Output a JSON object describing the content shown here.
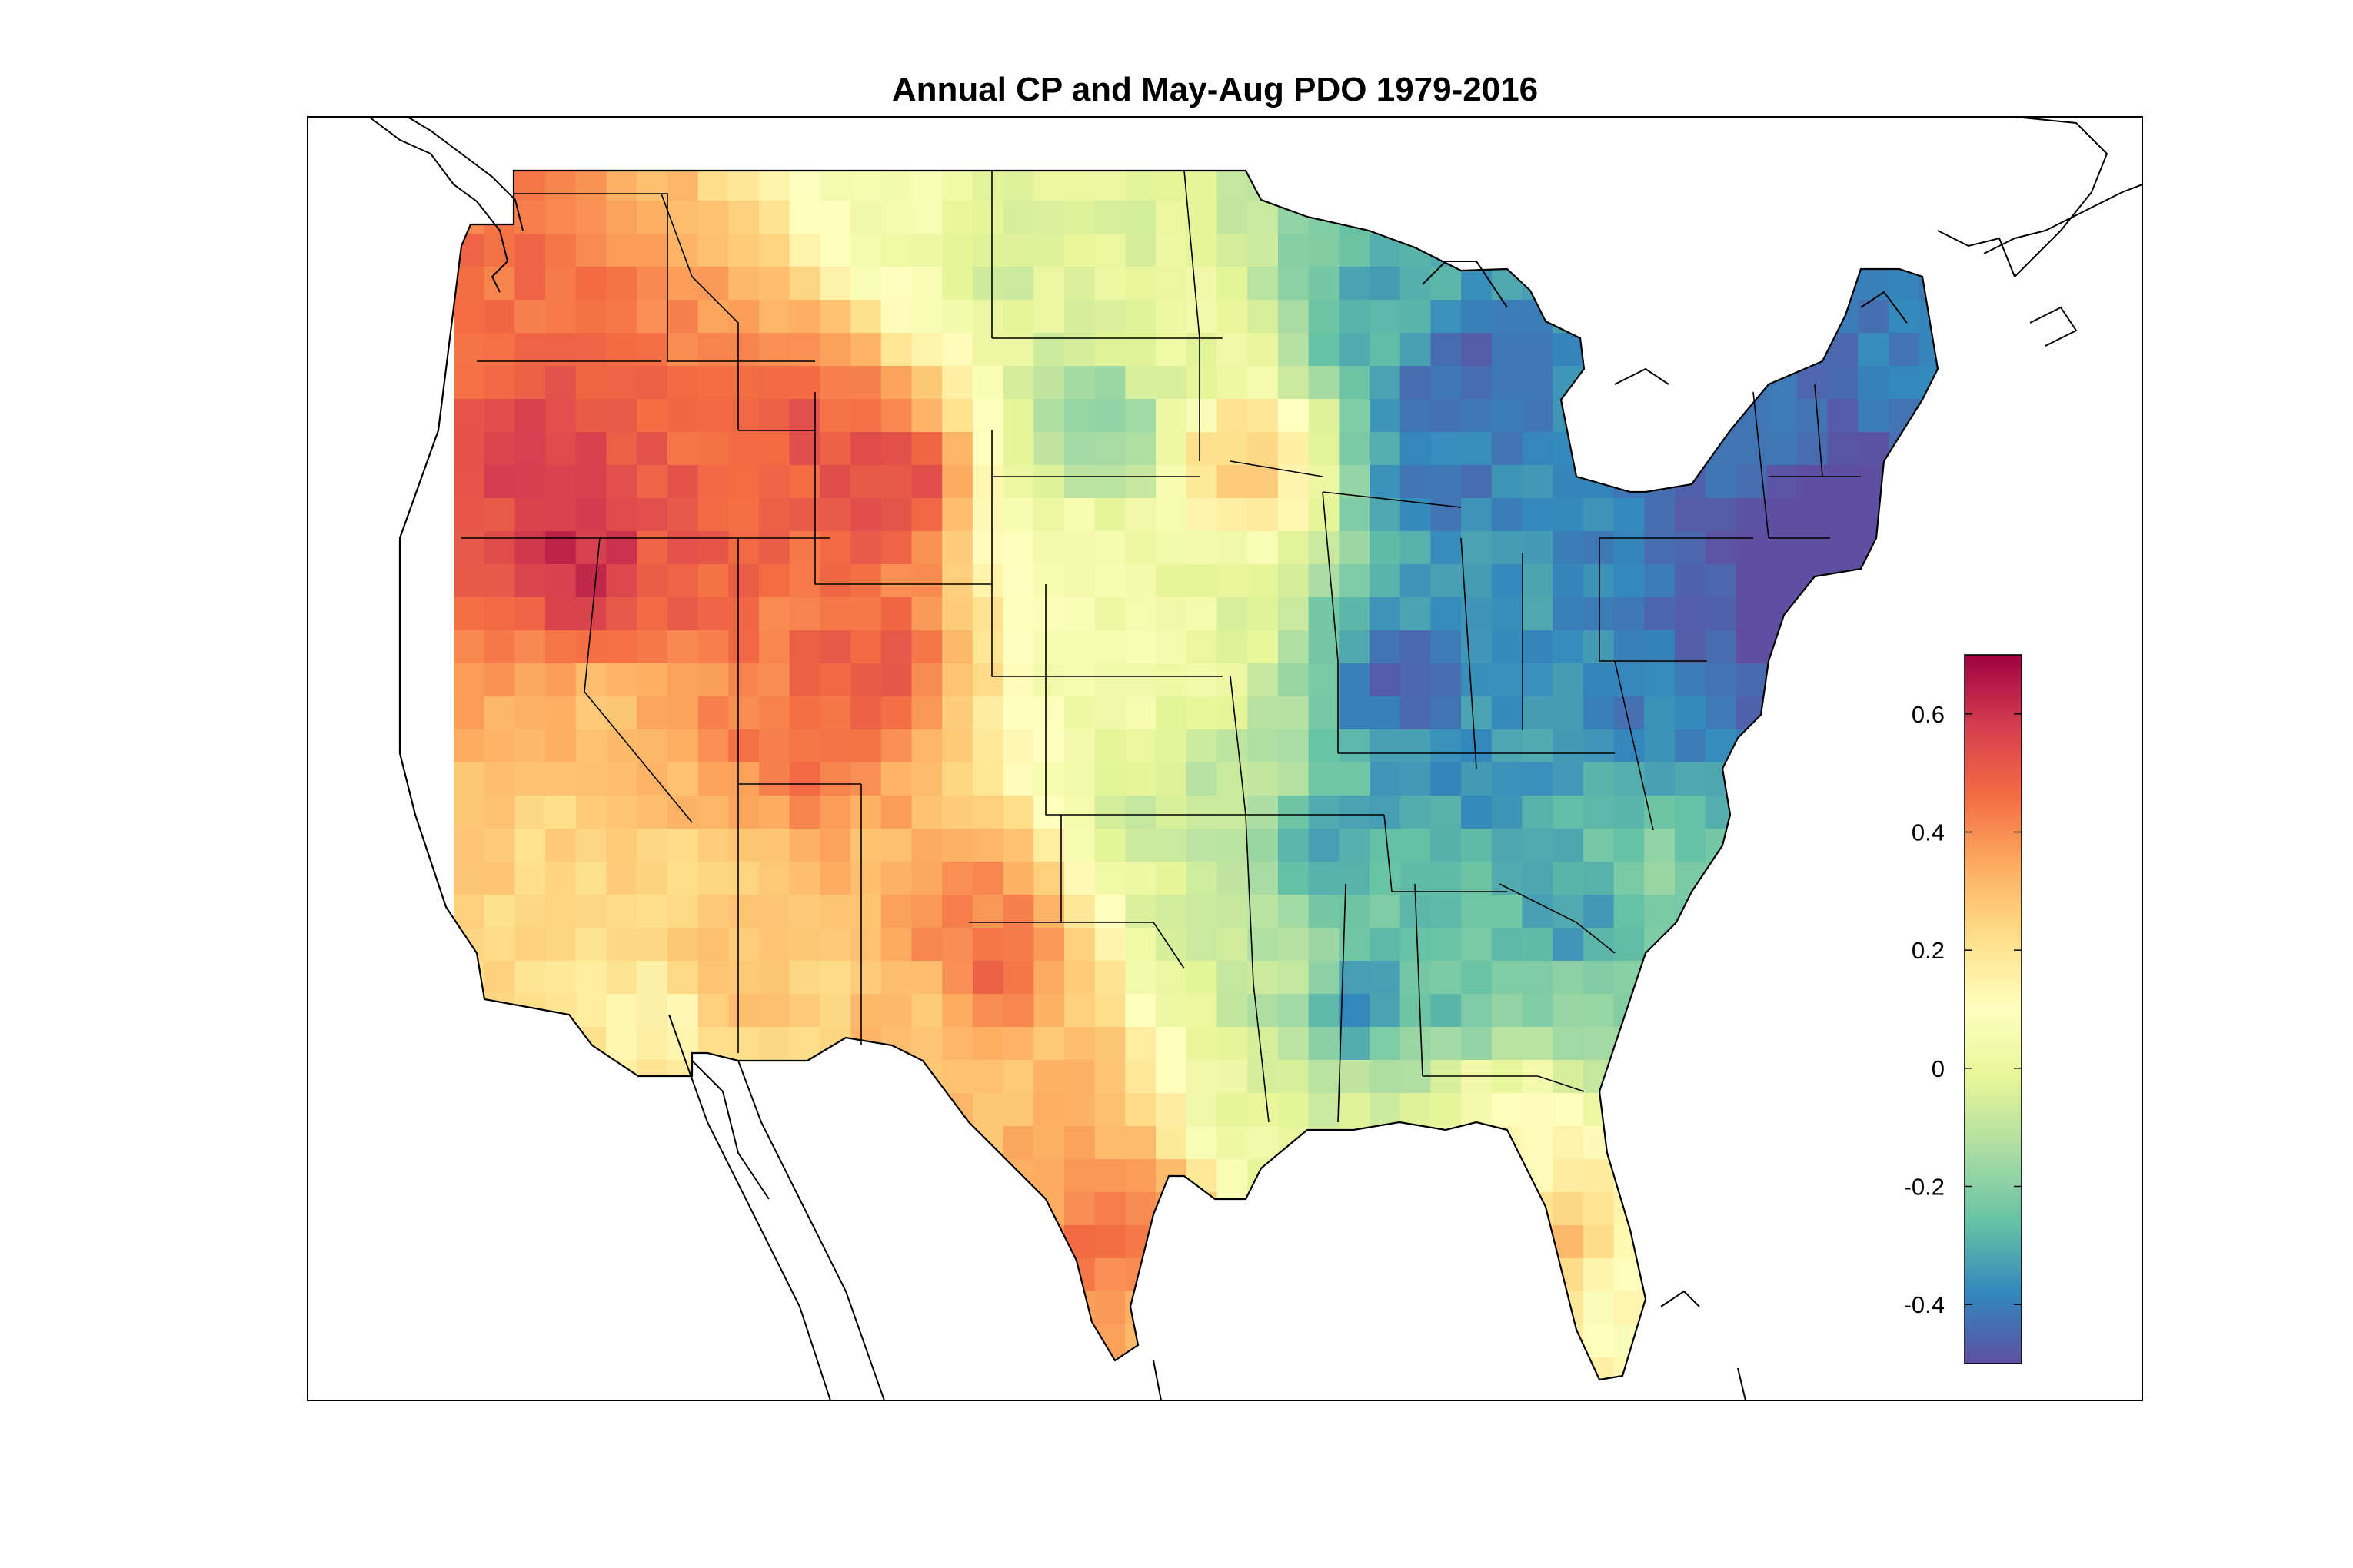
{
  "title": "Annual CP and May-Aug PDO 1979-2016",
  "colorbar": {
    "min": -0.5,
    "max": 0.7,
    "tick_values": [
      -0.4,
      -0.2,
      0,
      0.2,
      0.4,
      0.6
    ],
    "tick_labels": [
      "-0.4",
      "-0.2",
      "0",
      "0.2",
      "0.4",
      "0.6"
    ],
    "colormap": "spectral (reversed)",
    "colors": [
      "#5e4fa2",
      "#3288bd",
      "#66c2a5",
      "#abdda4",
      "#e6f598",
      "#ffffbf",
      "#fee08b",
      "#fdae61",
      "#f46d43",
      "#d53e4f",
      "#9e0142"
    ]
  },
  "map": {
    "region": "contiguous United States",
    "value_regions": [
      {
        "region": "Pacific Northwest coast",
        "value": 0.45
      },
      {
        "region": "Northern Rockies / Idaho",
        "value": 0.45
      },
      {
        "region": "Wyoming / Utah",
        "value": 0.5
      },
      {
        "region": "Nevada / Northern California",
        "value": 0.5
      },
      {
        "region": "Southern California",
        "value": 0.25
      },
      {
        "region": "Arizona",
        "value": 0.25
      },
      {
        "region": "New Mexico",
        "value": 0.35
      },
      {
        "region": "Texas",
        "value": 0.35
      },
      {
        "region": "Northern Plains",
        "value": 0.05
      },
      {
        "region": "Central Plains",
        "value": 0.05
      },
      {
        "region": "Upper Midwest",
        "value": -0.3
      },
      {
        "region": "Great Lakes / Michigan",
        "value": -0.4
      },
      {
        "region": "Ohio Valley",
        "value": -0.3
      },
      {
        "region": "Southeast",
        "value": -0.25
      },
      {
        "region": "Gulf Coast",
        "value": 0.0
      },
      {
        "region": "Florida",
        "value": 0.1
      },
      {
        "region": "Mid-Atlantic",
        "value": -0.35
      },
      {
        "region": "New England",
        "value": -0.45
      }
    ]
  }
}
